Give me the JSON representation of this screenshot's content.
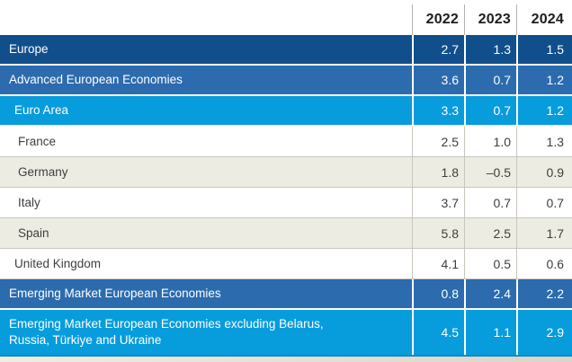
{
  "table": {
    "columns": [
      "2022",
      "2023",
      "2024"
    ],
    "rows": [
      {
        "label": "Europe",
        "values": [
          "2.7",
          "1.3",
          "1.5"
        ],
        "style": "navy",
        "indent": 0
      },
      {
        "label": "Advanced European Economies",
        "values": [
          "3.6",
          "0.7",
          "1.2"
        ],
        "style": "blue",
        "indent": 0
      },
      {
        "label": "Euro Area",
        "values": [
          "3.3",
          "0.7",
          "1.2"
        ],
        "style": "lightblue",
        "indent": 1
      },
      {
        "label": "France",
        "values": [
          "2.5",
          "1.0",
          "1.3"
        ],
        "style": "white",
        "indent": 2
      },
      {
        "label": "Germany",
        "values": [
          "1.8",
          "–0.5",
          "0.9"
        ],
        "style": "beige",
        "indent": 2
      },
      {
        "label": "Italy",
        "values": [
          "3.7",
          "0.7",
          "0.7"
        ],
        "style": "white",
        "indent": 2
      },
      {
        "label": "Spain",
        "values": [
          "5.8",
          "2.5",
          "1.7"
        ],
        "style": "beige",
        "indent": 2
      },
      {
        "label": "United Kingdom",
        "values": [
          "4.1",
          "0.5",
          "0.6"
        ],
        "style": "white",
        "indent": 1
      },
      {
        "label": "Emerging Market European Economies",
        "values": [
          "0.8",
          "2.4",
          "2.2"
        ],
        "style": "blue",
        "indent": 0
      },
      {
        "label": "Emerging Market European Economies excluding Belarus, Russia, Türkiye and Ukraine",
        "values": [
          "4.5",
          "1.1",
          "2.9"
        ],
        "style": "lightblue",
        "indent": 0,
        "tall": true
      }
    ]
  },
  "row_styles": {
    "navy": {
      "bg": "#114F8C",
      "text": "#FFFFFF"
    },
    "blue": {
      "bg": "#2C6BAE",
      "text": "#FFFFFF"
    },
    "lightblue": {
      "bg": "#079CDC",
      "text": "#FFFFFF"
    },
    "white": {
      "bg": "#FFFFFF",
      "text": "#3F3E3D"
    },
    "beige": {
      "bg": "#EDECE3",
      "text": "#3F3E3D"
    }
  },
  "colors": {
    "header_text": "#1E1D1B",
    "header_divider": "#B3B3B3",
    "light_row_divider": "#C8C6BD",
    "table_bottom_border": "#1C87BC"
  },
  "chart_data": {
    "type": "table",
    "title": "",
    "columns": [
      "2022",
      "2023",
      "2024"
    ],
    "rows": [
      {
        "label": "Europe",
        "values": [
          2.7,
          1.3,
          1.5
        ]
      },
      {
        "label": "Advanced European Economies",
        "values": [
          3.6,
          0.7,
          1.2
        ]
      },
      {
        "label": "Euro Area",
        "values": [
          3.3,
          0.7,
          1.2
        ]
      },
      {
        "label": "France",
        "values": [
          2.5,
          1.0,
          1.3
        ]
      },
      {
        "label": "Germany",
        "values": [
          1.8,
          -0.5,
          0.9
        ]
      },
      {
        "label": "Italy",
        "values": [
          3.7,
          0.7,
          0.7
        ]
      },
      {
        "label": "Spain",
        "values": [
          5.8,
          2.5,
          1.7
        ]
      },
      {
        "label": "United Kingdom",
        "values": [
          4.1,
          0.5,
          0.6
        ]
      },
      {
        "label": "Emerging Market European Economies",
        "values": [
          0.8,
          2.4,
          2.2
        ]
      },
      {
        "label": "Emerging Market European Economies excluding Belarus, Russia, Türkiye and Ukraine",
        "values": [
          4.5,
          1.1,
          2.9
        ]
      }
    ]
  }
}
